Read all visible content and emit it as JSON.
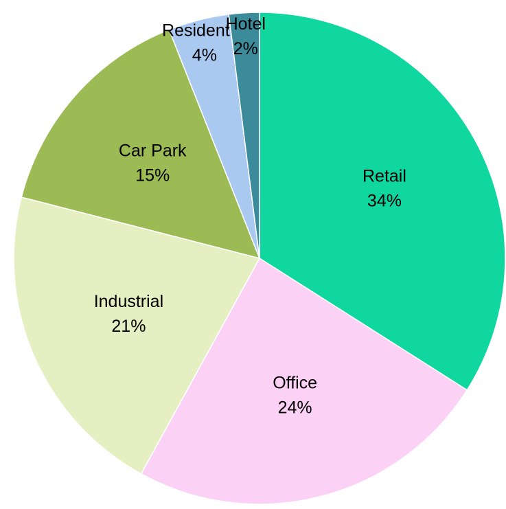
{
  "chart_data": {
    "type": "pie",
    "categories": [
      "Retail",
      "Office",
      "Industrial",
      "Car Park",
      "Residential",
      "Hotel"
    ],
    "values": [
      34,
      24,
      21,
      15,
      4,
      2
    ],
    "value_labels": [
      "34%",
      "24%",
      "21%",
      "15%",
      "4%",
      "2%"
    ],
    "colors": [
      "#10d6a0",
      "#fbd2f6",
      "#e5efc2",
      "#9cbb55",
      "#a9c9f1",
      "#3b8b9b"
    ]
  }
}
